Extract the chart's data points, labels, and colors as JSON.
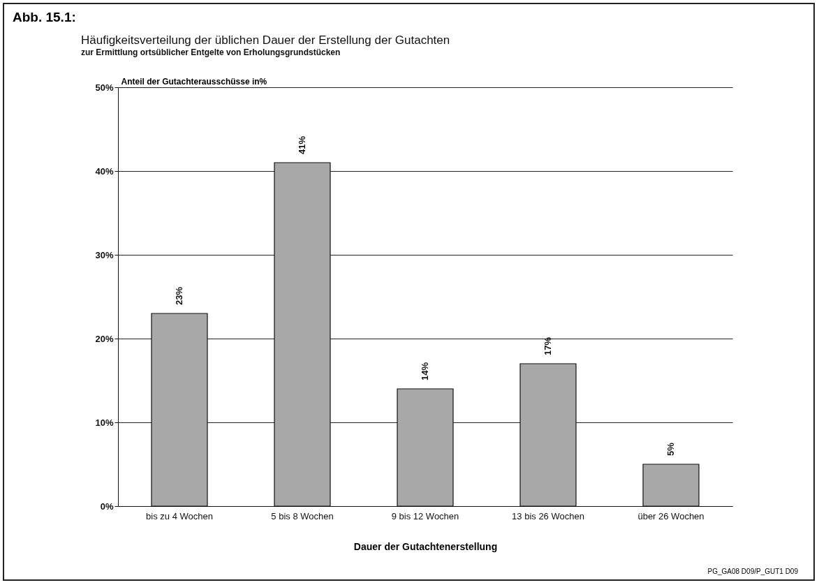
{
  "chart_data": {
    "type": "bar",
    "title": "Häufigkeitsverteilung der üblichen Dauer der Erstellung der Gutachten",
    "subtitle": "zur Ermittlung ortsüblicher Entgelte von Erholungsgrundstücken",
    "ylabel": "Anteil der Gutachterausschüsse in%",
    "xlabel": "Dauer der Gutachtenerstellung",
    "categories": [
      "bis zu 4 Wochen",
      "5 bis 8 Wochen",
      "9 bis 12 Wochen",
      "13 bis 26 Wochen",
      "über 26 Wochen"
    ],
    "values": [
      23,
      41,
      14,
      17,
      5
    ],
    "color": "#a8a8a8",
    "data_labels": true,
    "value_labels": [
      "23%",
      "41%",
      "14%",
      "17%",
      "5%"
    ],
    "ylim": [
      0,
      50
    ],
    "yticks": [
      {
        "value": 0,
        "label": "0%"
      },
      {
        "value": 10,
        "label": "10%"
      },
      {
        "value": 20,
        "label": "20%"
      },
      {
        "value": 30,
        "label": "30%"
      },
      {
        "value": 40,
        "label": "40%"
      },
      {
        "value": 50,
        "label": "50%"
      }
    ],
    "grid": "y",
    "annotations": [
      "Abb. 15.1:",
      "PG_GA08 D09/P_GUT1 D09"
    ]
  }
}
